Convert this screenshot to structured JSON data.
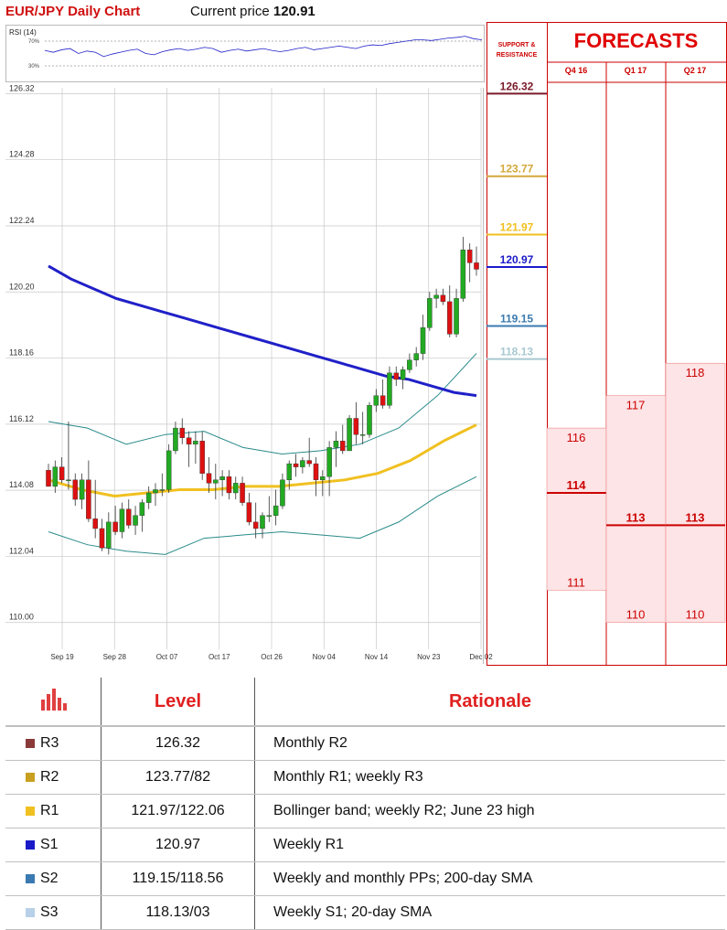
{
  "header": {
    "chart_title": "EUR/JPY Daily Chart",
    "price_label": "Current price",
    "price_value": "120.91"
  },
  "rsi": {
    "label": "RSI (14)",
    "level_high": "70%",
    "level_low": "30%",
    "values": [
      55,
      52,
      56,
      58,
      50,
      54,
      52,
      45,
      49,
      52,
      55,
      57,
      50,
      48,
      53,
      56,
      58,
      55,
      57,
      60,
      58,
      52,
      55,
      57,
      54,
      56,
      58,
      55,
      53,
      55,
      58,
      60,
      56,
      58,
      60,
      62,
      60,
      58,
      62,
      64,
      63,
      66,
      68,
      70,
      72,
      72,
      71,
      73,
      75,
      76,
      78,
      74,
      72
    ]
  },
  "colors": {
    "title_red": "#d01010",
    "forecast_red": "#e00000",
    "up_candle": "#22aa22",
    "down_candle": "#dd1111",
    "sma200": "#2020c8",
    "sma20": "#f0c020",
    "bollinger": "#2a8a8a",
    "r3": "#7a1a2a",
    "r2": "#d4a83a",
    "r1": "#f0c020",
    "s1": "#1a1ac8",
    "s2": "#3a7ab0",
    "s3": "#a8c8d0",
    "forecast_fill": "#fde4e6"
  },
  "chart_data": {
    "type": "candlestick",
    "title": "EUR/JPY Daily Chart",
    "ylim": [
      109.4,
      126.5
    ],
    "y_ticks": [
      "126.32",
      "124.28",
      "122.24",
      "120.20",
      "118.16",
      "116.12",
      "114.08",
      "112.04",
      "110.00"
    ],
    "x_ticks": [
      "Sep 19",
      "Sep 28",
      "Oct 07",
      "Oct 17",
      "Oct 26",
      "Nov 04",
      "Nov 14",
      "Nov 23",
      "Dec 02"
    ],
    "candles": [
      [
        114.7,
        114.9,
        114.2,
        114.2
      ],
      [
        114.2,
        115.0,
        114.0,
        114.8
      ],
      [
        114.8,
        115.1,
        114.3,
        114.4
      ],
      [
        114.4,
        116.2,
        114.1,
        114.4
      ],
      [
        114.4,
        114.6,
        113.6,
        113.8
      ],
      [
        113.8,
        114.6,
        113.5,
        114.4
      ],
      [
        114.4,
        115.0,
        113.1,
        113.2
      ],
      [
        113.2,
        114.4,
        112.6,
        112.9
      ],
      [
        112.9,
        113.2,
        112.2,
        112.3
      ],
      [
        112.3,
        113.4,
        112.1,
        113.1
      ],
      [
        113.1,
        113.6,
        112.7,
        112.8
      ],
      [
        112.8,
        113.7,
        112.6,
        113.5
      ],
      [
        113.5,
        113.8,
        112.9,
        113.0
      ],
      [
        113.0,
        113.6,
        112.7,
        113.3
      ],
      [
        113.3,
        113.8,
        112.8,
        113.7
      ],
      [
        113.7,
        114.2,
        113.5,
        114.0
      ],
      [
        114.0,
        114.3,
        113.6,
        114.1
      ],
      [
        114.1,
        114.6,
        113.9,
        114.1
      ],
      [
        114.1,
        115.5,
        114.0,
        115.3
      ],
      [
        115.3,
        116.2,
        115.2,
        116.0
      ],
      [
        116.0,
        116.3,
        115.5,
        115.7
      ],
      [
        115.7,
        115.9,
        114.8,
        115.5
      ],
      [
        115.5,
        115.9,
        114.9,
        115.6
      ],
      [
        115.6,
        115.9,
        114.4,
        114.6
      ],
      [
        114.6,
        115.1,
        114.0,
        114.3
      ],
      [
        114.3,
        114.9,
        113.8,
        114.4
      ],
      [
        114.4,
        114.7,
        113.9,
        114.5
      ],
      [
        114.5,
        114.7,
        113.8,
        114.0
      ],
      [
        114.0,
        114.5,
        113.8,
        114.3
      ],
      [
        114.3,
        114.5,
        113.6,
        113.7
      ],
      [
        113.7,
        114.0,
        113.0,
        113.1
      ],
      [
        113.1,
        113.7,
        112.6,
        112.9
      ],
      [
        112.9,
        113.4,
        112.6,
        113.3
      ],
      [
        113.3,
        113.9,
        113.1,
        113.3
      ],
      [
        113.3,
        114.1,
        113.0,
        113.6
      ],
      [
        113.6,
        114.6,
        113.5,
        114.4
      ],
      [
        114.4,
        115.0,
        114.1,
        114.9
      ],
      [
        114.9,
        115.2,
        114.5,
        114.8
      ],
      [
        114.8,
        115.1,
        114.6,
        115.0
      ],
      [
        115.0,
        115.7,
        114.8,
        114.9
      ],
      [
        114.9,
        115.1,
        113.9,
        114.4
      ],
      [
        114.4,
        114.7,
        113.9,
        114.5
      ],
      [
        114.5,
        115.6,
        113.9,
        115.4
      ],
      [
        115.4,
        115.9,
        114.8,
        115.6
      ],
      [
        115.6,
        116.1,
        115.2,
        115.3
      ],
      [
        115.3,
        116.4,
        115.3,
        116.3
      ],
      [
        116.3,
        116.8,
        115.5,
        115.8
      ],
      [
        115.8,
        116.5,
        115.5,
        115.8
      ],
      [
        115.8,
        116.8,
        115.7,
        116.7
      ],
      [
        116.7,
        117.2,
        116.5,
        117.0
      ],
      [
        117.0,
        117.5,
        116.6,
        116.7
      ],
      [
        116.7,
        117.9,
        116.6,
        117.7
      ],
      [
        117.7,
        117.9,
        117.3,
        117.5
      ],
      [
        117.5,
        117.9,
        117.2,
        117.8
      ],
      [
        117.8,
        118.3,
        117.7,
        118.1
      ],
      [
        118.1,
        118.5,
        117.9,
        118.3
      ],
      [
        118.3,
        119.5,
        118.1,
        119.1
      ],
      [
        119.1,
        120.2,
        119.0,
        120.0
      ],
      [
        120.0,
        120.3,
        119.7,
        120.1
      ],
      [
        120.1,
        120.3,
        119.8,
        119.9
      ],
      [
        119.9,
        120.4,
        118.8,
        118.9
      ],
      [
        118.9,
        120.3,
        118.8,
        120.0
      ],
      [
        120.0,
        121.9,
        119.9,
        121.5
      ],
      [
        121.5,
        121.7,
        120.5,
        121.1
      ],
      [
        121.1,
        121.6,
        120.7,
        120.9
      ]
    ],
    "sma200": [
      121.0,
      120.6,
      120.3,
      120.0,
      119.8,
      119.6,
      119.4,
      119.2,
      119.0,
      118.8,
      118.6,
      118.4,
      118.2,
      118.0,
      117.8,
      117.6,
      117.5,
      117.3,
      117.1,
      117.0
    ],
    "sma20": [
      114.4,
      114.1,
      113.9,
      114.0,
      114.1,
      114.1,
      114.2,
      114.2,
      114.3,
      114.4,
      114.6,
      115.0,
      115.6,
      116.1
    ],
    "bb_upper": [
      116.2,
      116.0,
      115.5,
      115.8,
      115.9,
      115.4,
      115.2,
      115.3,
      115.5,
      116.0,
      117.0,
      118.3
    ],
    "bb_lower": [
      112.8,
      112.4,
      112.2,
      112.1,
      112.6,
      112.7,
      112.8,
      112.7,
      112.6,
      113.1,
      113.9,
      114.5
    ]
  },
  "support_resistance": {
    "title_line1": "SUPPORT &",
    "title_line2": "RESISTANCE",
    "levels": [
      {
        "name": "R3",
        "value": "126.32",
        "color": "#7a1a2a",
        "num": 126.32
      },
      {
        "name": "R2",
        "value": "123.77",
        "color": "#d4a83a",
        "num": 123.77
      },
      {
        "name": "R1",
        "value": "121.97",
        "color": "#f0c020",
        "num": 121.97
      },
      {
        "name": "S1",
        "value": "120.97",
        "color": "#1a1ac8",
        "num": 120.97
      },
      {
        "name": "S2",
        "value": "119.15",
        "color": "#3a7ab0",
        "num": 119.15
      },
      {
        "name": "S3",
        "value": "118.13",
        "color": "#a8c8d0",
        "num": 118.13
      }
    ]
  },
  "forecasts": {
    "title": "FORECASTS",
    "quarters": [
      {
        "label": "Q4 16",
        "high": "116",
        "mid": "114",
        "low": "111",
        "high_num": 116,
        "mid_num": 114,
        "low_num": 111
      },
      {
        "label": "Q1 17",
        "high": "117",
        "mid": "113",
        "low": "110",
        "high_num": 117,
        "mid_num": 113,
        "low_num": 110
      },
      {
        "label": "Q2 17",
        "high": "118",
        "mid": "113",
        "low": "110",
        "high_num": 118,
        "mid_num": 113,
        "low_num": 110
      }
    ]
  },
  "table": {
    "header_level": "Level",
    "header_rationale": "Rationale",
    "rows": [
      {
        "tag": "R3",
        "level": "126.32",
        "rationale": "Monthly R2",
        "color": "#8b3a3a"
      },
      {
        "tag": "R2",
        "level": "123.77/82",
        "rationale": "Monthly R1; weekly R3",
        "color": "#c8a020"
      },
      {
        "tag": "R1",
        "level": "121.97/122.06",
        "rationale": "Bollinger band; weekly R2; June 23 high",
        "color": "#f0c020"
      },
      {
        "tag": "S1",
        "level": "120.97",
        "rationale": "Weekly R1",
        "color": "#1a1ac8"
      },
      {
        "tag": "S2",
        "level": "119.15/118.56",
        "rationale": "Weekly and monthly PPs; 200-day SMA",
        "color": "#3a7ab0"
      },
      {
        "tag": "S3",
        "level": "118.13/03",
        "rationale": "Weekly S1; 20-day SMA",
        "color": "#b8d0e8"
      }
    ]
  }
}
